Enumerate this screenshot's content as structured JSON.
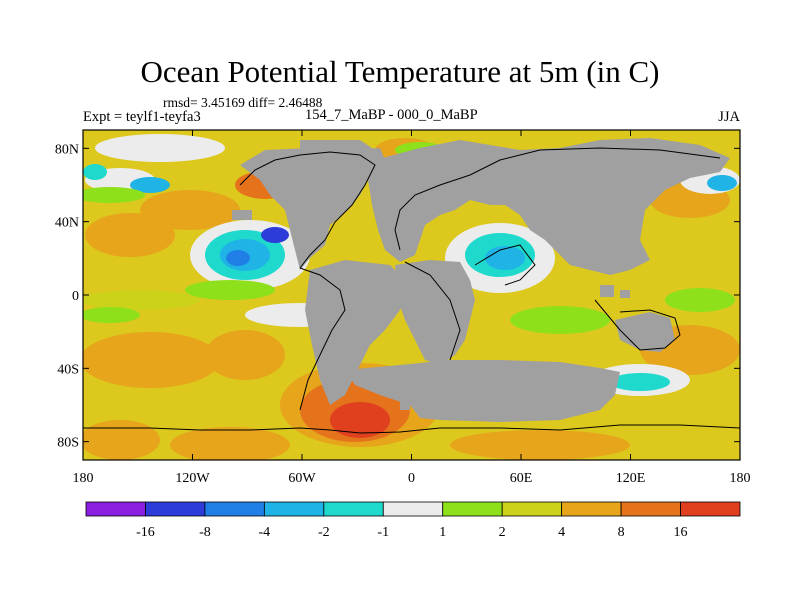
{
  "title": "Ocean Potential Temperature at 5m (in C)",
  "stats_line": "rmsd= 3.45169 diff= 2.46488",
  "experiment_label": "Expt = teylf1-teyfa3",
  "period_label": "154_7_MaBP - 000_0_MaBP",
  "season_label": "JJA",
  "map": {
    "lon_range": [
      -180,
      180
    ],
    "lat_range": [
      -90,
      90
    ],
    "lon_ticks": [
      {
        "value": -180,
        "label": "180"
      },
      {
        "value": -120,
        "label": "120W"
      },
      {
        "value": -60,
        "label": "60W"
      },
      {
        "value": 0,
        "label": "0"
      },
      {
        "value": 60,
        "label": "60E"
      },
      {
        "value": 120,
        "label": "120E"
      },
      {
        "value": 180,
        "label": "180"
      }
    ],
    "lat_ticks": [
      {
        "value": 80,
        "label": "80N"
      },
      {
        "value": 40,
        "label": "40N"
      },
      {
        "value": 0,
        "label": "0"
      },
      {
        "value": -40,
        "label": "40S"
      },
      {
        "value": -80,
        "label": "80S"
      }
    ],
    "land_color": "#a0a0a0",
    "ocean_base_color": "#ddc81e"
  },
  "colorbar": {
    "colors": [
      "#8a1fe0",
      "#2d3bd8",
      "#1f7fe6",
      "#1fb3e6",
      "#1fd9cc",
      "#ececec",
      "#8ee01a",
      "#ccd119",
      "#e6a51a",
      "#e5731c",
      "#e0401e"
    ],
    "labels": [
      "-16",
      "-8",
      "-4",
      "-2",
      "-1",
      "1",
      "2",
      "4",
      "8",
      "16"
    ]
  }
}
